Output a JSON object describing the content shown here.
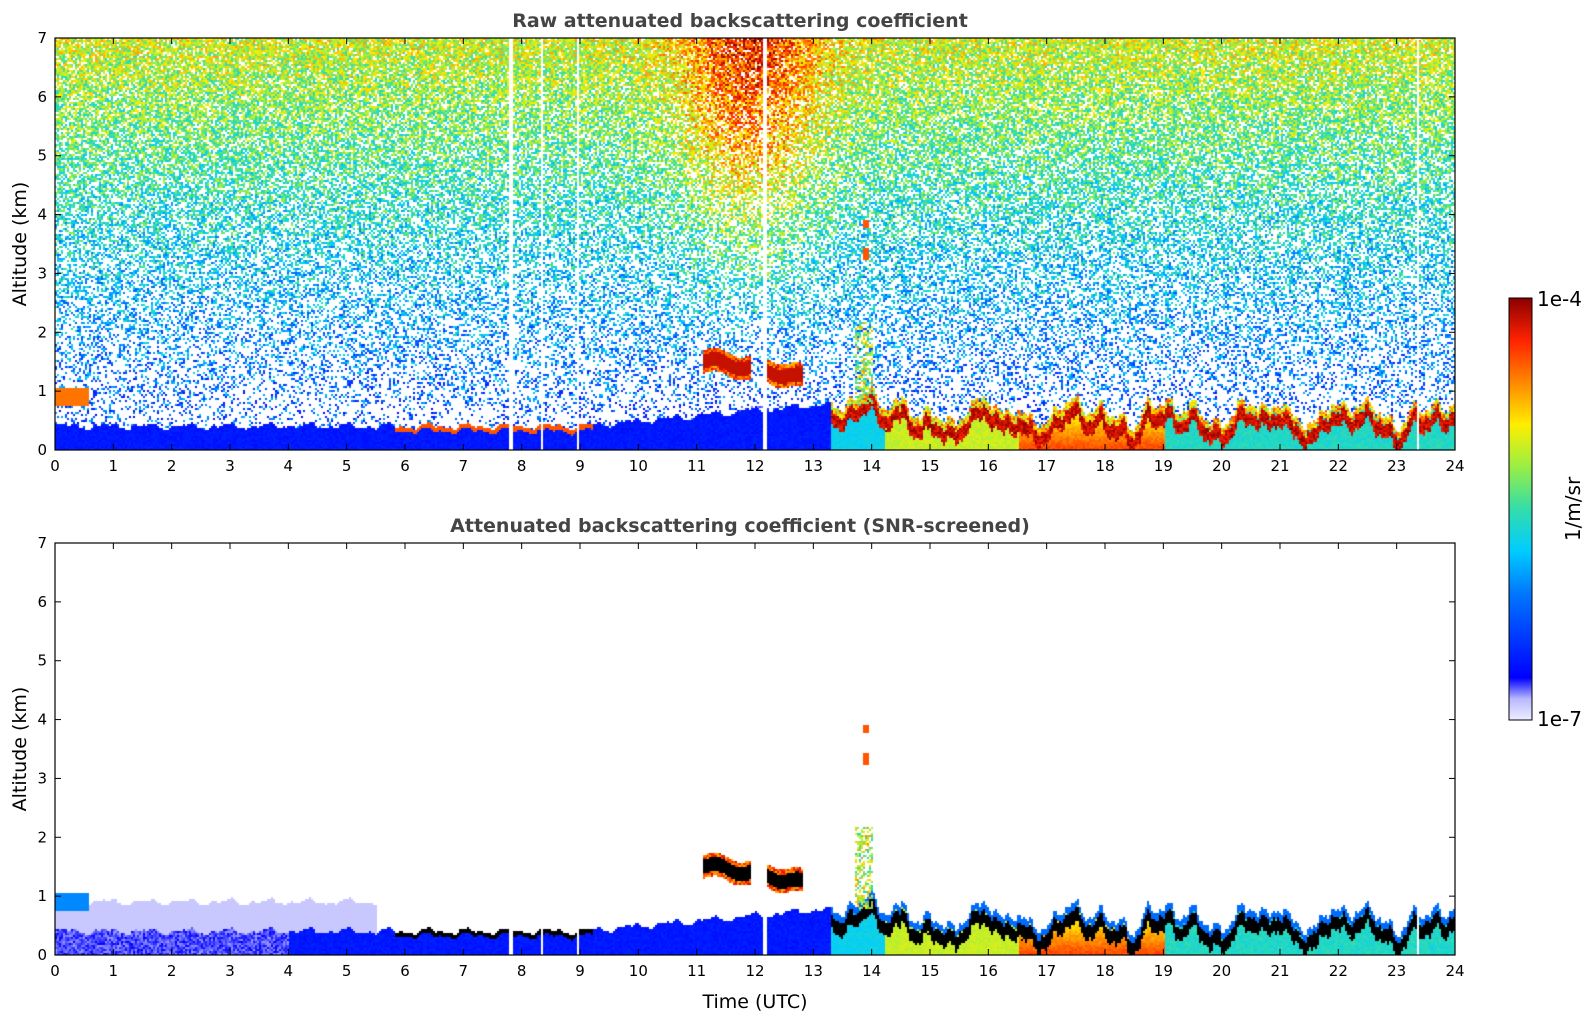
{
  "chart_data": [
    {
      "type": "heatmap",
      "title": "Raw attenuated backscattering coefficient",
      "xlabel": "",
      "ylabel": "Altitude (km)",
      "xlim": [
        0,
        24
      ],
      "ylim": [
        0,
        7
      ],
      "x_ticks": [
        "0",
        "1",
        "2",
        "3",
        "4",
        "5",
        "6",
        "7",
        "8",
        "9",
        "10",
        "11",
        "12",
        "13",
        "14",
        "15",
        "16",
        "17",
        "18",
        "19",
        "20",
        "21",
        "22",
        "23",
        "24"
      ],
      "y_ticks": [
        "0",
        "1",
        "2",
        "3",
        "4",
        "5",
        "6",
        "7"
      ],
      "features": [
        {
          "feature": "aerosol layer",
          "time_utc": [
            0,
            10.5
          ],
          "altitude_km": [
            0,
            0.45
          ],
          "level": "low"
        },
        {
          "feature": "aerosol layer top",
          "time_utc": [
            6,
            9
          ],
          "altitude_km": [
            0.35,
            0.45
          ],
          "level": "high"
        },
        {
          "feature": "early elevated layer",
          "time_utc": [
            0,
            0.5
          ],
          "altitude_km": [
            0.8,
            1.05
          ],
          "level": "high"
        },
        {
          "feature": "cloud",
          "time_utc": [
            11.1,
            12.8
          ],
          "altitude_km": [
            1.2,
            1.75
          ],
          "level": "very high"
        },
        {
          "feature": "cloud",
          "time_utc": [
            13.8,
            13.95
          ],
          "altitude_km": [
            3.2,
            3.9
          ],
          "level": "high"
        },
        {
          "feature": "boundary layer",
          "time_utc": [
            13.3,
            24
          ],
          "altitude_km": [
            0,
            1.0
          ],
          "level": "high"
        },
        {
          "feature": "boundary layer top",
          "time_utc": [
            14.5,
            24
          ],
          "altitude_km": [
            0.3,
            0.7
          ],
          "level": "very high"
        },
        {
          "feature": "noise",
          "time_utc": [
            0,
            24
          ],
          "altitude_km": [
            2,
            7
          ],
          "level": "rises with altitude, peak near 11.5-12.5 UTC"
        }
      ]
    },
    {
      "type": "heatmap",
      "title": "Attenuated backscattering coefficient (SNR-screened)",
      "xlabel": "Time (UTC)",
      "ylabel": "Altitude (km)",
      "xlim": [
        0,
        24
      ],
      "ylim": [
        0,
        7
      ],
      "x_ticks": [
        "0",
        "1",
        "2",
        "3",
        "4",
        "5",
        "6",
        "7",
        "8",
        "9",
        "10",
        "11",
        "12",
        "13",
        "14",
        "15",
        "16",
        "17",
        "18",
        "19",
        "20",
        "21",
        "22",
        "23",
        "24"
      ],
      "y_ticks": [
        "0",
        "1",
        "2",
        "3",
        "4",
        "5",
        "6",
        "7"
      ],
      "features": [
        {
          "feature": "aerosol layer",
          "time_utc": [
            0,
            10.5
          ],
          "altitude_km": [
            0,
            0.45
          ],
          "level": "low"
        },
        {
          "feature": "early elevated layer",
          "time_utc": [
            0,
            0.6
          ],
          "altitude_km": [
            0.8,
            1.05
          ],
          "level": "medium"
        },
        {
          "feature": "cloud",
          "time_utc": [
            11.1,
            12.8
          ],
          "altitude_km": [
            1.2,
            1.8
          ],
          "level": "saturated"
        },
        {
          "feature": "cloud",
          "time_utc": [
            13.8,
            13.95
          ],
          "altitude_km": [
            3.2,
            3.9
          ],
          "level": "high"
        },
        {
          "feature": "boundary layer",
          "time_utc": [
            13.3,
            24
          ],
          "altitude_km": [
            0,
            1.0
          ],
          "level": "high"
        },
        {
          "feature": "boundary layer top",
          "time_utc": [
            14.5,
            24
          ],
          "altitude_km": [
            0.3,
            0.7
          ],
          "level": "saturated"
        }
      ]
    }
  ],
  "colorbar": {
    "max_label": "1e-4",
    "min_label": "1e-7",
    "unit_label": "1/m/sr",
    "scale": "log",
    "colormap": [
      "#f2f2ff",
      "#c8c8ff",
      "#0000ff",
      "#0088ff",
      "#00ccff",
      "#44dd99",
      "#99ee44",
      "#ffee00",
      "#ff8800",
      "#ff2200",
      "#8a0000"
    ],
    "saturated_color": "#000000",
    "gap_color": "#ffffff"
  }
}
